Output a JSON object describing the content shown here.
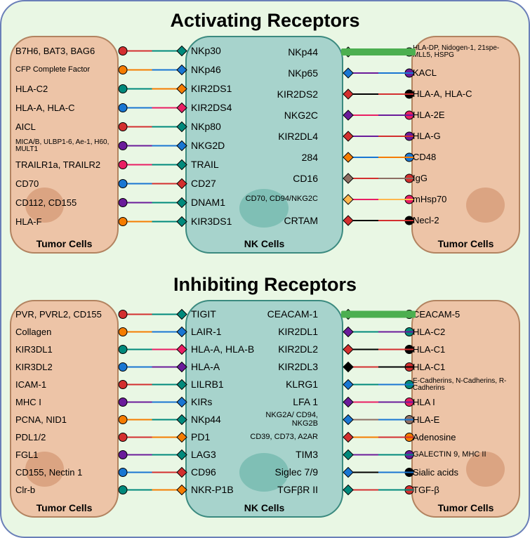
{
  "titles": {
    "activating": "Activating Receptors",
    "inhibiting": "Inhibiting Receptors"
  },
  "labels": {
    "tumor": "Tumor Cells",
    "nk": "NK Cells"
  },
  "colors": {
    "container_bg": "#e9f7e4",
    "container_border": "#6a7fb8",
    "tumor_bg": "#edc4a7",
    "tumor_border": "#b28360",
    "nucleus": "#dba482",
    "nk_bg": "#a7d3cc",
    "nk_border": "#3b8a7f",
    "nk_nucleus": "#7fbfb5",
    "green_bar": "#4caf50",
    "conn_red": "#d32f2f",
    "conn_orange": "#f57c00",
    "conn_teal": "#00897b",
    "conn_blue": "#1976d2",
    "conn_pink": "#e91e63"
  },
  "activating": {
    "left_ligands": [
      {
        "text": "B7H6, BAT3, BAG6",
        "size": "normal"
      },
      {
        "text": "CFP Complete Factor",
        "size": "small"
      },
      {
        "text": "HLA-C2",
        "size": "normal"
      },
      {
        "text": "HLA-A, HLA-C",
        "size": "normal"
      },
      {
        "text": "AICL",
        "size": "normal"
      },
      {
        "text": "MICA/B, ULBP1-6, Ae-1, H60, MULT1",
        "size": "tiny"
      },
      {
        "text": "TRAILR1a, TRAILR2",
        "size": "normal"
      },
      {
        "text": "CD70",
        "size": "normal"
      },
      {
        "text": "CD112, CD155",
        "size": "normal"
      },
      {
        "text": "HLA-F",
        "size": "normal"
      }
    ],
    "left_receptors": [
      "NKp30",
      "NKp46",
      "KIR2DS1",
      "KIR2DS4",
      "NKp80",
      "NKG2D",
      "TRAIL",
      "CD27",
      "DNAM1",
      "KIR3DS1"
    ],
    "right_receptors": [
      "NKp44",
      "NKp65",
      "KIR2DS2",
      "NKG2C",
      "KIR2DL4",
      "284",
      "CD16",
      "CD70, CD94/NKG2C",
      "CRTAM"
    ],
    "right_ligands": [
      {
        "text": "HLA-DP, Nidogen-1, 21spe-MLL5, HSPG",
        "size": "tiny"
      },
      {
        "text": "KACL",
        "size": "normal"
      },
      {
        "text": "HLA-A, HLA-C",
        "size": "normal"
      },
      {
        "text": "HLA-2E",
        "size": "normal"
      },
      {
        "text": "HLA-G",
        "size": "normal"
      },
      {
        "text": "CD48",
        "size": "normal"
      },
      {
        "text": "IgG",
        "size": "normal"
      },
      {
        "text": "mHsp70",
        "size": "normal"
      },
      {
        "text": "Necl-2",
        "size": "normal"
      }
    ],
    "left_connectors": [
      {
        "c1": "#d32f2f",
        "c2": "#00897b"
      },
      {
        "c1": "#f57c00",
        "c2": "#1976d2"
      },
      {
        "c1": "#00897b",
        "c2": "#f57c00"
      },
      {
        "c1": "#1976d2",
        "c2": "#e91e63"
      },
      {
        "c1": "#d32f2f",
        "c2": "#00897b"
      },
      {
        "c1": "#6a1b9a",
        "c2": "#1976d2"
      },
      {
        "c1": "#e91e63",
        "c2": "#00897b"
      },
      {
        "c1": "#1976d2",
        "c2": "#d32f2f"
      },
      {
        "c1": "#6a1b9a",
        "c2": "#00897b"
      },
      {
        "c1": "#f57c00",
        "c2": "#00897b"
      }
    ],
    "right_connectors": [
      {
        "c1": "#4caf50",
        "c2": "#4caf50"
      },
      {
        "c1": "#6a1b9a",
        "c2": "#1976d2"
      },
      {
        "c1": "#000",
        "c2": "#d32f2f"
      },
      {
        "c1": "#e91e63",
        "c2": "#6a1b9a"
      },
      {
        "c1": "#6a1b9a",
        "c2": "#d32f2f"
      },
      {
        "c1": "#1976d2",
        "c2": "#f57c00"
      },
      {
        "c1": "#d32f2f",
        "c2": "#8d6e63"
      },
      {
        "c1": "#e91e63",
        "c2": "#ffb74d"
      },
      {
        "c1": "#000",
        "c2": "#d32f2f"
      }
    ]
  },
  "inhibiting": {
    "left_ligands": [
      {
        "text": "PVR, PVRL2, CD155",
        "size": "normal"
      },
      {
        "text": "Collagen",
        "size": "normal"
      },
      {
        "text": "KIR3DL1",
        "size": "normal"
      },
      {
        "text": "KIR3DL2",
        "size": "normal"
      },
      {
        "text": "ICAM-1",
        "size": "normal"
      },
      {
        "text": "MHC I",
        "size": "normal"
      },
      {
        "text": "PCNA, NID1",
        "size": "normal"
      },
      {
        "text": "PDL1/2",
        "size": "normal"
      },
      {
        "text": "FGL1",
        "size": "normal"
      },
      {
        "text": "CD155, Nectin 1",
        "size": "normal"
      },
      {
        "text": "Clr-b",
        "size": "normal"
      }
    ],
    "left_receptors": [
      "TIGIT",
      "LAIR-1",
      "HLA-A, HLA-B",
      "HLA-A",
      "LILRB1",
      "KIRs",
      "NKp44",
      "PD1",
      "LAG3",
      "CD96",
      "NKR-P1B"
    ],
    "right_receptors": [
      "CEACAM-1",
      "KIR2DL1",
      "KIR2DL2",
      "KIR2DL3",
      "KLRG1",
      "LFA 1",
      "NKG2A/ CD94, NKG2B",
      "CD39, CD73, A2AR",
      "TIM3",
      "Siglec 7/9",
      "TGFβR II"
    ],
    "right_ligands": [
      {
        "text": "CEACAM-5",
        "size": "normal"
      },
      {
        "text": "HLA-C2",
        "size": "normal"
      },
      {
        "text": "HLA-C1",
        "size": "normal"
      },
      {
        "text": "HLA-C1",
        "size": "normal"
      },
      {
        "text": "E-Cadherins, N-Cadherins, R-Cadherins",
        "size": "tiny"
      },
      {
        "text": "HLA I",
        "size": "normal"
      },
      {
        "text": "HLA-E",
        "size": "normal"
      },
      {
        "text": "Adenosine",
        "size": "normal"
      },
      {
        "text": "GALECTIN 9, MHC II",
        "size": "small"
      },
      {
        "text": "Sialic acids",
        "size": "normal"
      },
      {
        "text": "TGF-β",
        "size": "normal"
      }
    ],
    "left_connectors": [
      {
        "c1": "#d32f2f",
        "c2": "#00897b"
      },
      {
        "c1": "#f57c00",
        "c2": "#1976d2"
      },
      {
        "c1": "#00897b",
        "c2": "#e91e63"
      },
      {
        "c1": "#1976d2",
        "c2": "#6a1b9a"
      },
      {
        "c1": "#d32f2f",
        "c2": "#00897b"
      },
      {
        "c1": "#6a1b9a",
        "c2": "#1976d2"
      },
      {
        "c1": "#f57c00",
        "c2": "#00897b"
      },
      {
        "c1": "#d32f2f",
        "c2": "#f57c00"
      },
      {
        "c1": "#6a1b9a",
        "c2": "#00897b"
      },
      {
        "c1": "#1976d2",
        "c2": "#d32f2f"
      },
      {
        "c1": "#00897b",
        "c2": "#f57c00"
      }
    ],
    "right_connectors": [
      {
        "c1": "#4caf50",
        "c2": "#4caf50"
      },
      {
        "c1": "#00897b",
        "c2": "#6a1b9a"
      },
      {
        "c1": "#000",
        "c2": "#d32f2f"
      },
      {
        "c1": "#d32f2f",
        "c2": "#000"
      },
      {
        "c1": "#00897b",
        "c2": "#1976d2"
      },
      {
        "c1": "#e91e63",
        "c2": "#6a1b9a"
      },
      {
        "c1": "#8d6e63",
        "c2": "#1976d2"
      },
      {
        "c1": "#f57c00",
        "c2": "#d32f2f"
      },
      {
        "c1": "#6a1b9a",
        "c2": "#00897b"
      },
      {
        "c1": "#000",
        "c2": "#1976d2"
      },
      {
        "c1": "#d32f2f",
        "c2": "#00897b"
      }
    ]
  }
}
